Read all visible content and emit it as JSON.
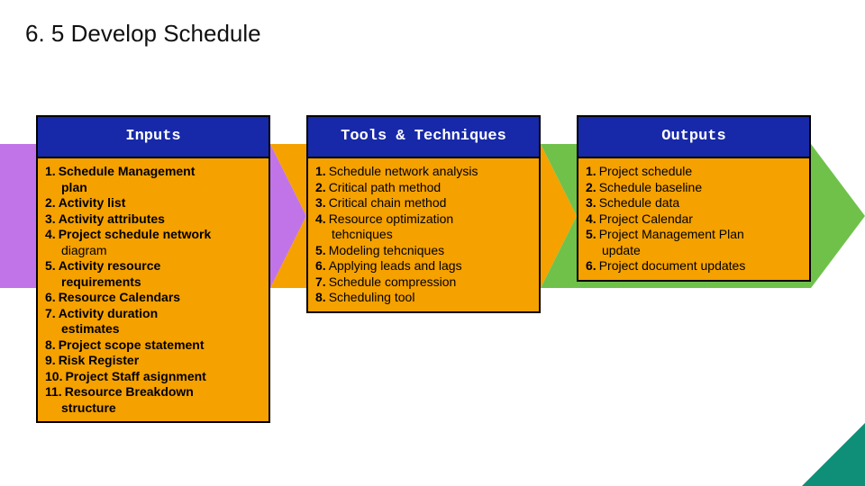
{
  "title": "6. 5 Develop Schedule",
  "arrow_colors": [
    "#c174e8",
    "#f5a100",
    "#6fc14a"
  ],
  "columns": [
    {
      "header": "Inputs",
      "header_bg": "#1729a8",
      "body_bg": "#f5a100",
      "items": [
        {
          "num": "1.",
          "text": "Schedule Management",
          "bold": true,
          "sub": "plan",
          "sub_bold": true
        },
        {
          "num": "2.",
          "text": "Activity list",
          "bold": true
        },
        {
          "num": "3.",
          "text": "Activity attributes",
          "bold": true
        },
        {
          "num": "4.",
          "text": "Project schedule network",
          "bold": true,
          "sub": "diagram",
          "sub_bold": false
        },
        {
          "num": "5.",
          "text": "Activity resource",
          "bold": true,
          "sub": "requirements",
          "sub_bold": true
        },
        {
          "num": "6.",
          "text": "Resource Calendars",
          "bold": true
        },
        {
          "num": "7.",
          "text": "Activity duration",
          "bold": true,
          "sub": "estimates",
          "sub_bold": true
        },
        {
          "num": "8.",
          "text": "Project scope statement",
          "bold": true
        },
        {
          "num": "9.",
          "text": "Risk Register",
          "bold": true
        },
        {
          "num": "10.",
          "text": "Project Staff asignment",
          "bold": true
        },
        {
          "num": "11.",
          "text": "Resource Breakdown",
          "bold": true,
          "sub": "structure",
          "sub_bold": true
        }
      ]
    },
    {
      "header": "Tools & Techniques",
      "header_bg": "#1729a8",
      "body_bg": "#f5a100",
      "items": [
        {
          "num": "1.",
          "text": "Schedule network analysis"
        },
        {
          "num": "2.",
          "text": "Critical path method"
        },
        {
          "num": "3.",
          "text": "Critical chain method"
        },
        {
          "num": "4.",
          "text": "Resource optimization",
          "sub": "tehcniques"
        },
        {
          "num": "5.",
          "text": "Modeling tehcniques"
        },
        {
          "num": "6.",
          "text": "Applying leads and lags"
        },
        {
          "num": "7.",
          "text": "Schedule compression"
        },
        {
          "num": "8.",
          "text": "Scheduling tool"
        }
      ]
    },
    {
      "header": "Outputs",
      "header_bg": "#1729a8",
      "body_bg": "#f5a100",
      "items": [
        {
          "num": "1.",
          "text": "Project schedule"
        },
        {
          "num": "2.",
          "text": "Schedule baseline"
        },
        {
          "num": "3.",
          "text": "Schedule data"
        },
        {
          "num": "4.",
          "text": "Project Calendar"
        },
        {
          "num": "5.",
          "text": "Project Management Plan",
          "sub": "update"
        },
        {
          "num": "6.",
          "text": "Project document updates"
        }
      ]
    }
  ],
  "corner_color": "#0f8f78"
}
